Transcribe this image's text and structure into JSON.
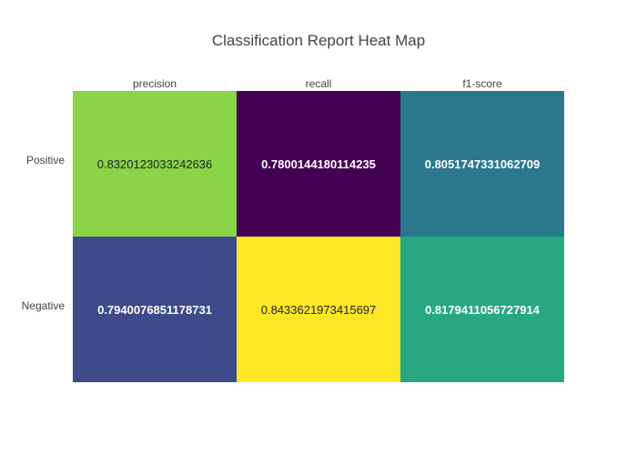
{
  "chart_data": {
    "type": "heatmap",
    "title": "Classification Report Heat Map",
    "x_categories": [
      "precision",
      "recall",
      "f1-score"
    ],
    "y_categories": [
      "Positive",
      "Negative"
    ],
    "z": [
      [
        0.8320123033242636,
        0.7800144180114235,
        0.8051747331062709
      ],
      [
        0.7940076851178731,
        0.8433621973415697,
        0.8179411056727914
      ]
    ],
    "labels": [
      [
        "0.8320123033242636",
        "0.7800144180114235",
        "0.8051747331062709"
      ],
      [
        "0.7940076851178731",
        "0.8433621973415697",
        "0.8179411056727914"
      ]
    ],
    "colorscale": "viridis",
    "x_axis_position": "top",
    "grid": false
  }
}
